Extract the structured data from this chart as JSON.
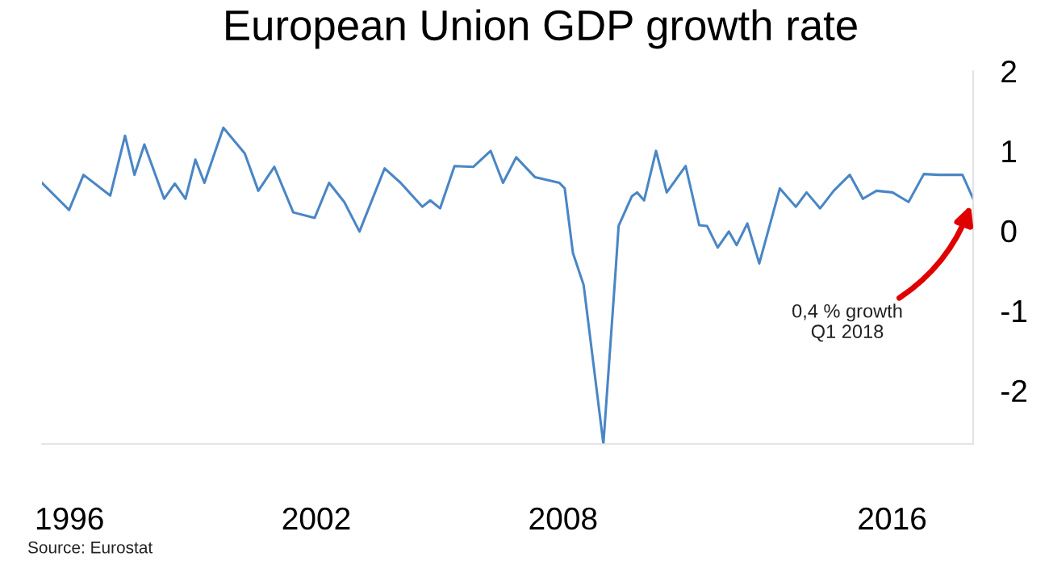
{
  "chart_data": {
    "type": "line",
    "title": "European Union GDP growth rate",
    "x": [
      1995.33,
      1995.99,
      1996.34,
      1996.99,
      1997.35,
      1997.58,
      1997.82,
      1998.3,
      1998.56,
      1998.82,
      1999.06,
      1999.28,
      1999.74,
      2000.26,
      2000.59,
      2000.98,
      2001.44,
      2001.96,
      2002.31,
      2002.68,
      2003.05,
      2003.66,
      2004.05,
      2004.58,
      2004.77,
      2005.01,
      2005.36,
      2005.82,
      2006.24,
      2006.54,
      2006.86,
      2007.32,
      2007.91,
      2008.04,
      2008.24,
      2008.5,
      2008.98,
      2009.28,
      2009.35,
      2009.67,
      2009.8,
      2009.97,
      2010.26,
      2010.52,
      2010.98,
      2011.31,
      2011.5,
      2011.76,
      2012.03,
      2012.22,
      2012.48,
      2012.77,
      2013.27,
      2013.66,
      2013.92,
      2014.25,
      2014.58,
      2014.97,
      2015.29,
      2015.62,
      2016.01,
      2016.4,
      2016.77,
      2017.13,
      2017.71,
      2017.97
    ],
    "series": [
      {
        "color": "#4a86c5",
        "values": [
          0.6,
          0.26,
          0.7,
          0.44,
          1.19,
          0.7,
          1.08,
          0.4,
          0.59,
          0.4,
          0.89,
          0.6,
          1.29,
          0.97,
          0.5,
          0.8,
          0.23,
          0.16,
          0.6,
          0.36,
          -0.01,
          0.78,
          0.6,
          0.3,
          0.38,
          0.28,
          0.81,
          0.8,
          1.0,
          0.6,
          0.92,
          0.67,
          0.6,
          0.53,
          -0.28,
          -0.68,
          -2.67,
          -0.48,
          0.06,
          0.43,
          0.48,
          0.38,
          1.0,
          0.48,
          0.81,
          0.07,
          0.06,
          -0.21,
          -0.01,
          -0.18,
          0.09,
          -0.41,
          0.53,
          0.3,
          0.48,
          0.28,
          0.5,
          0.7,
          0.4,
          0.5,
          0.48,
          0.36,
          0.71,
          0.7,
          0.7,
          0.4
        ]
      }
    ],
    "xlim": [
      1995.33,
      2017.97
    ],
    "xticks": [
      1996,
      2002,
      2008,
      2016
    ],
    "ylim": [
      -2.67,
      2
    ],
    "yticks": [
      2,
      1,
      0,
      -1,
      -2
    ],
    "grid": false,
    "legend": false,
    "marker": "none",
    "line_style": "solid",
    "annotations": [
      {
        "text": "0,4 % growth\nQ1 2018",
        "x": 2017.97,
        "y": 0.4
      },
      "Source: Eurostat"
    ]
  }
}
